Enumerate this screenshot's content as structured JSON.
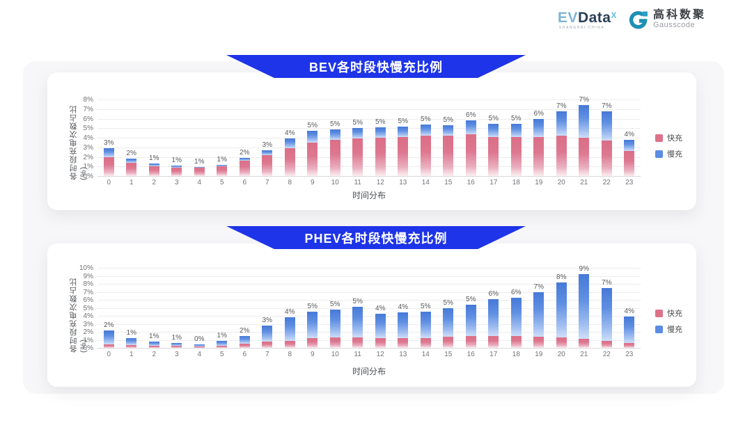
{
  "header": {
    "evdata_logo": {
      "ev": "EV",
      "data": "Data",
      "sup": "X",
      "tagline": "SHANGHAI CHINA"
    },
    "gausscode_logo": {
      "cn": "高科数聚",
      "en": "Gausscode"
    }
  },
  "ui_colors": {
    "banner_blue": "#1e34e8",
    "fast_pink": "#dd7188",
    "slow_blue": "#5b8ce4",
    "panel_gray": "#f7f7f9"
  },
  "chart_data": [
    {
      "type": "bar",
      "stacked": true,
      "title": "BEV各时段快慢充比例",
      "xlabel": "时间分布",
      "ylabel": "各时段充电次数占比(%)",
      "ylim": [
        0,
        8
      ],
      "ytick_step": 1,
      "grid": true,
      "legend_position": "right",
      "categories": [
        0,
        1,
        2,
        3,
        4,
        5,
        6,
        7,
        8,
        9,
        10,
        11,
        12,
        13,
        14,
        15,
        16,
        17,
        18,
        19,
        20,
        21,
        22,
        23
      ],
      "series": [
        {
          "name": "快充",
          "color": "#dd7188",
          "values": [
            2.0,
            1.4,
            1.0,
            0.85,
            0.9,
            1.0,
            1.6,
            2.2,
            2.9,
            3.5,
            3.8,
            3.9,
            4.0,
            4.1,
            4.2,
            4.2,
            4.4,
            4.1,
            4.1,
            4.1,
            4.2,
            4.0,
            3.7,
            2.6
          ]
        },
        {
          "name": "慢充",
          "color": "#5b8ce4",
          "values": [
            0.9,
            0.45,
            0.3,
            0.25,
            0.08,
            0.2,
            0.3,
            0.5,
            1.0,
            1.2,
            1.1,
            1.1,
            1.1,
            1.1,
            1.15,
            1.1,
            1.4,
            1.35,
            1.35,
            1.85,
            2.6,
            3.4,
            3.1,
            1.2
          ]
        }
      ],
      "total_labels": [
        "3%",
        "2%",
        "1%",
        "1%",
        "1%",
        "1%",
        "2%",
        "3%",
        "4%",
        "5%",
        "5%",
        "5%",
        "5%",
        "5%",
        "5%",
        "5%",
        "6%",
        "5%",
        "5%",
        "6%",
        "7%",
        "7%",
        "7%",
        "4%"
      ]
    },
    {
      "type": "bar",
      "stacked": true,
      "title": "PHEV各时段快慢充比例",
      "xlabel": "时间分布",
      "ylabel": "各时段充电次数占比(%)",
      "ylim": [
        0,
        10
      ],
      "ytick_step": 1,
      "grid": true,
      "legend_position": "right",
      "categories": [
        0,
        1,
        2,
        3,
        4,
        5,
        6,
        7,
        8,
        9,
        10,
        11,
        12,
        13,
        14,
        15,
        16,
        17,
        18,
        19,
        20,
        21,
        22,
        23
      ],
      "series": [
        {
          "name": "快充",
          "color": "#dd7188",
          "values": [
            0.45,
            0.35,
            0.3,
            0.25,
            0.2,
            0.3,
            0.55,
            0.75,
            0.9,
            1.2,
            1.3,
            1.3,
            1.2,
            1.2,
            1.2,
            1.4,
            1.5,
            1.5,
            1.5,
            1.4,
            1.3,
            1.1,
            0.9,
            0.6
          ]
        },
        {
          "name": "慢充",
          "color": "#5b8ce4",
          "values": [
            1.75,
            0.85,
            0.5,
            0.35,
            0.25,
            0.55,
            0.95,
            2.05,
            2.9,
            3.3,
            3.5,
            3.8,
            3.1,
            3.2,
            3.3,
            3.6,
            3.9,
            4.6,
            4.8,
            5.6,
            6.9,
            8.1,
            6.6,
            3.3
          ]
        }
      ],
      "total_labels": [
        "2%",
        "1%",
        "1%",
        "1%",
        "0%",
        "1%",
        "2%",
        "3%",
        "4%",
        "5%",
        "5%",
        "5%",
        "4%",
        "4%",
        "5%",
        "5%",
        "5%",
        "6%",
        "6%",
        "7%",
        "8%",
        "9%",
        "7%",
        "4%"
      ]
    }
  ]
}
